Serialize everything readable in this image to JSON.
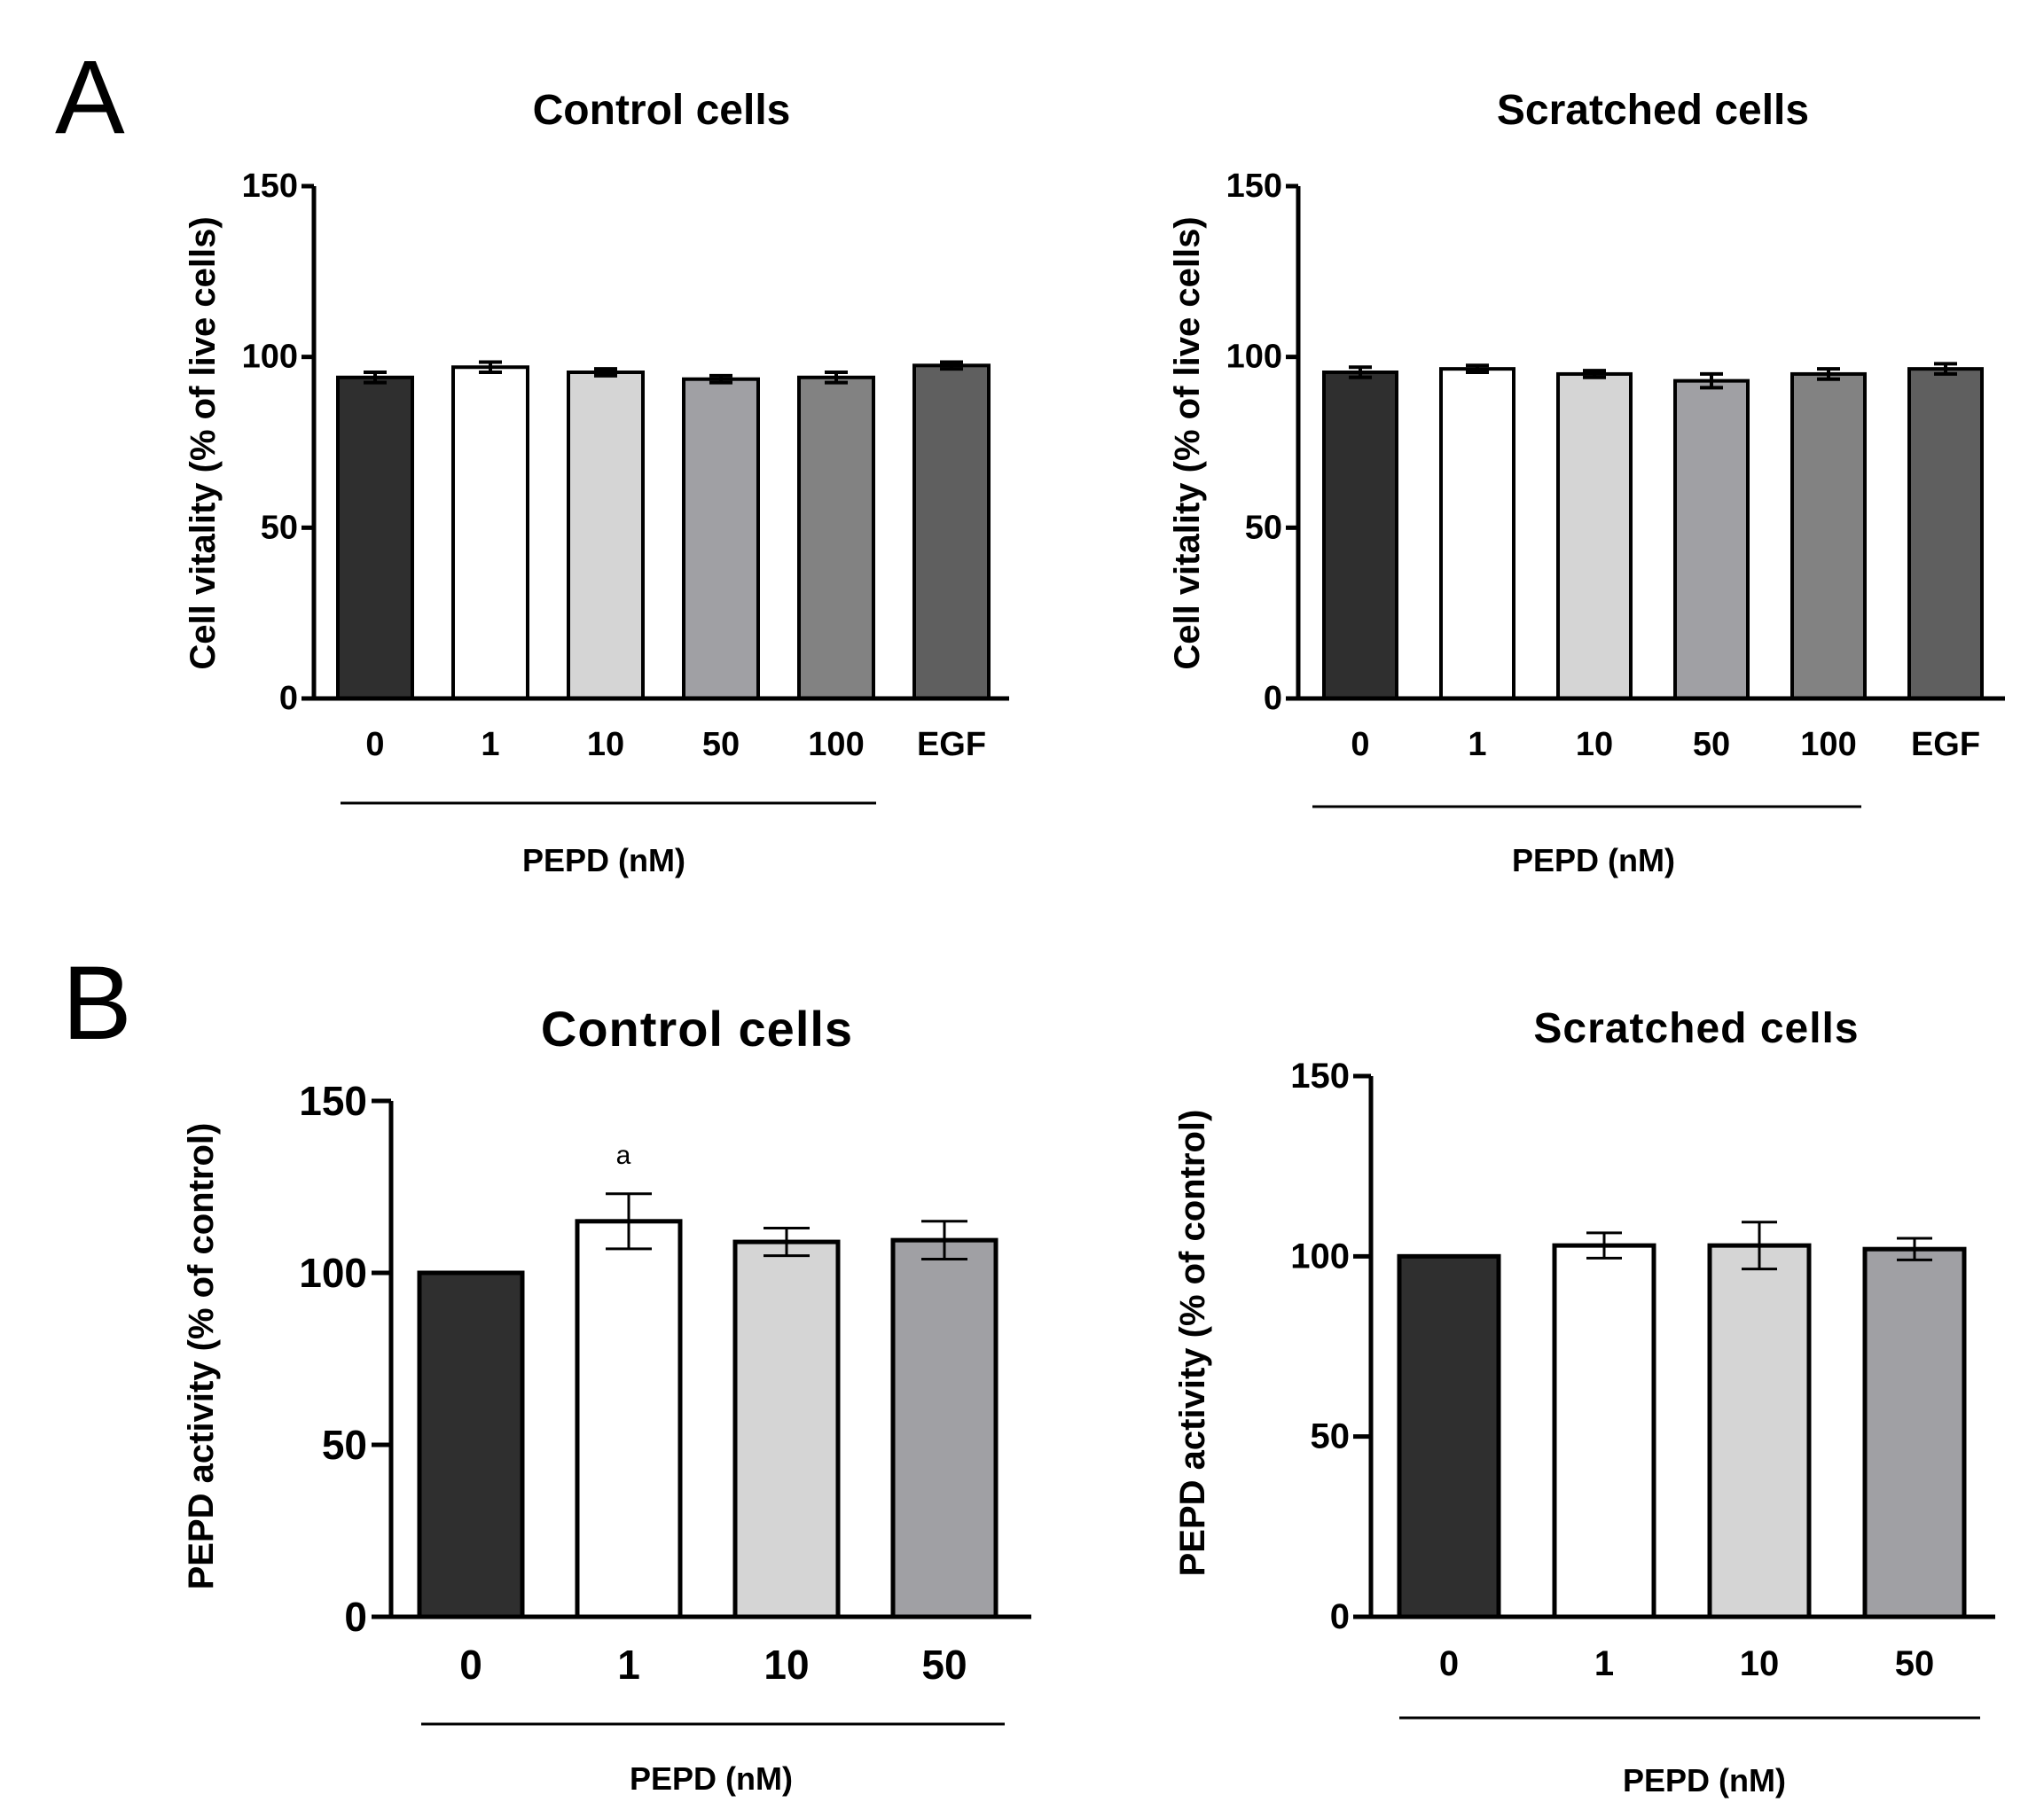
{
  "panel_letters": [
    "A",
    "B"
  ],
  "chart_data": [
    {
      "id": "A-left",
      "panel": "A",
      "type": "bar",
      "title": "Control cells",
      "ylabel": "Cell vitality (% of live cells)",
      "xlabel": "PEPD (nM)",
      "categories": [
        "0",
        "1",
        "10",
        "50",
        "100",
        "EGF"
      ],
      "values": [
        94,
        97,
        95.5,
        93.5,
        94,
        97.5
      ],
      "errors": [
        1.5,
        1.5,
        1,
        1,
        1.5,
        1
      ],
      "colors": [
        "#2f2f2f",
        "#ffffff",
        "#d5d5d5",
        "#a0a0a4",
        "#828282",
        "#5f5f5f"
      ],
      "ylim": [
        0,
        150
      ],
      "yticks": [
        0,
        50,
        100,
        150
      ],
      "annotations": [
        "",
        "",
        "",
        "",
        "",
        ""
      ]
    },
    {
      "id": "A-right",
      "panel": "A",
      "type": "bar",
      "title": "Scratched cells",
      "ylabel": "Cell vitality (% of live cells)",
      "xlabel": "PEPD (nM)",
      "categories": [
        "0",
        "1",
        "10",
        "50",
        "100",
        "EGF"
      ],
      "values": [
        95.5,
        96.5,
        95,
        93,
        95,
        96.5
      ],
      "errors": [
        1.5,
        1,
        1,
        2,
        1.5,
        1.5
      ],
      "colors": [
        "#2f2f2f",
        "#ffffff",
        "#d5d5d5",
        "#a0a0a4",
        "#828282",
        "#5f5f5f"
      ],
      "ylim": [
        0,
        150
      ],
      "yticks": [
        0,
        50,
        100,
        150
      ],
      "annotations": [
        "",
        "",
        "",
        "",
        "",
        ""
      ]
    },
    {
      "id": "B-left",
      "panel": "B",
      "type": "bar",
      "title": "Control cells",
      "ylabel": "PEPD activity (% of control)",
      "xlabel": "PEPD (nM)",
      "categories": [
        "0",
        "1",
        "10",
        "50"
      ],
      "values": [
        100,
        115,
        109,
        109.5
      ],
      "errors": [
        0,
        8,
        4,
        5.5
      ],
      "colors": [
        "#2f2f2f",
        "#ffffff",
        "#d5d5d5",
        "#a0a0a4"
      ],
      "ylim": [
        0,
        150
      ],
      "yticks": [
        0,
        50,
        100,
        150
      ],
      "annotations": [
        "",
        "a",
        "",
        ""
      ]
    },
    {
      "id": "B-right",
      "panel": "B",
      "type": "bar",
      "title": "Scratched cells",
      "ylabel": "PEPD activity (% of control)",
      "xlabel": "PEPD (nM)",
      "categories": [
        "0",
        "1",
        "10",
        "50"
      ],
      "values": [
        100,
        103,
        103,
        102
      ],
      "errors": [
        0,
        3.5,
        6.5,
        3
      ],
      "colors": [
        "#2f2f2f",
        "#ffffff",
        "#d5d5d5",
        "#a0a0a4"
      ],
      "ylim": [
        0,
        150
      ],
      "yticks": [
        0,
        50,
        100,
        150
      ],
      "annotations": [
        "",
        "",
        "",
        ""
      ]
    }
  ]
}
